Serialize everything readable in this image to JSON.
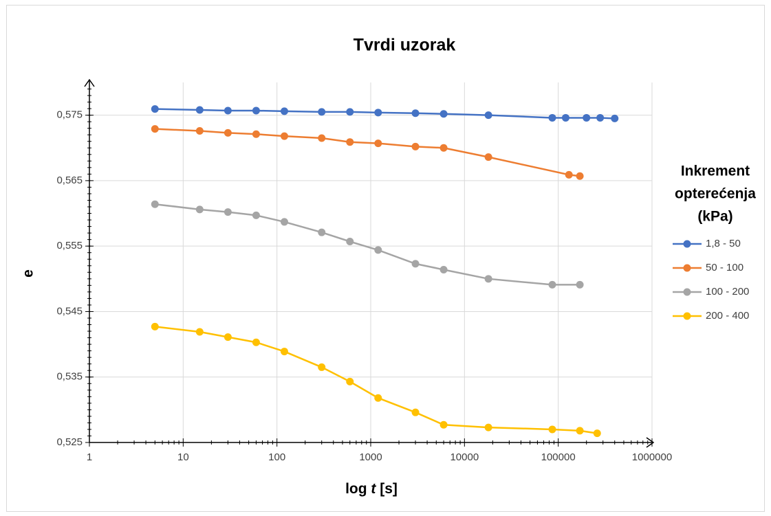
{
  "chart_data": {
    "type": "line",
    "title": "Tvrdi uzorak",
    "x_label": [
      "log ",
      "t",
      " [s]"
    ],
    "y_label": "e",
    "x_scale": "log",
    "grid": true,
    "legend_position": "right",
    "legend_title": [
      "Inkrement",
      "opterećenja",
      "(kPa)"
    ],
    "xlim": [
      1,
      1000000
    ],
    "xticks": [
      1,
      10,
      100,
      1000,
      10000,
      100000,
      1000000
    ],
    "ylim": [
      0.525,
      0.58
    ],
    "yticks": [
      {
        "value": 0.525,
        "label": "0,525"
      },
      {
        "value": 0.535,
        "label": "0,535"
      },
      {
        "value": 0.545,
        "label": "0,545"
      },
      {
        "value": 0.555,
        "label": "0,555"
      },
      {
        "value": 0.565,
        "label": "0,565"
      },
      {
        "value": 0.575,
        "label": "0,575"
      }
    ],
    "series": [
      {
        "name": "1,8 - 50",
        "color": "#4472c4",
        "x": [
          5,
          15,
          30,
          60,
          120,
          300,
          600,
          1200,
          3000,
          6000,
          18000,
          86400,
          120000,
          200000,
          280000,
          400000
        ],
        "values": [
          0.57595,
          0.5758,
          0.5757,
          0.5757,
          0.5756,
          0.5755,
          0.5755,
          0.5754,
          0.5753,
          0.5752,
          0.575,
          0.5746,
          0.5746,
          0.5746,
          0.5746,
          0.5745
        ]
      },
      {
        "name": "50 - 100",
        "color": "#ed7d31",
        "x": [
          5,
          15,
          30,
          60,
          120,
          300,
          600,
          1200,
          3000,
          6000,
          18000,
          130000,
          170000
        ],
        "values": [
          0.5729,
          0.5726,
          0.5723,
          0.5721,
          0.5718,
          0.5715,
          0.5709,
          0.5707,
          0.5702,
          0.57,
          0.5686,
          0.5659,
          0.5657
        ]
      },
      {
        "name": "100 - 200",
        "color": "#a5a5a5",
        "x": [
          5,
          15,
          30,
          60,
          120,
          300,
          600,
          1200,
          3000,
          6000,
          18000,
          86400,
          170000
        ],
        "values": [
          0.5614,
          0.5606,
          0.5602,
          0.5597,
          0.5587,
          0.5571,
          0.5557,
          0.5544,
          0.5523,
          0.5514,
          0.55,
          0.5491,
          0.5491
        ]
      },
      {
        "name": "200 - 400",
        "color": "#ffc000",
        "x": [
          5,
          15,
          30,
          60,
          120,
          300,
          600,
          1200,
          3000,
          6000,
          18000,
          86400,
          170000,
          260000
        ],
        "values": [
          0.5427,
          0.5419,
          0.5411,
          0.5403,
          0.5389,
          0.5365,
          0.5343,
          0.5318,
          0.5296,
          0.5277,
          0.5273,
          0.527,
          0.5268,
          0.5264
        ]
      }
    ]
  }
}
